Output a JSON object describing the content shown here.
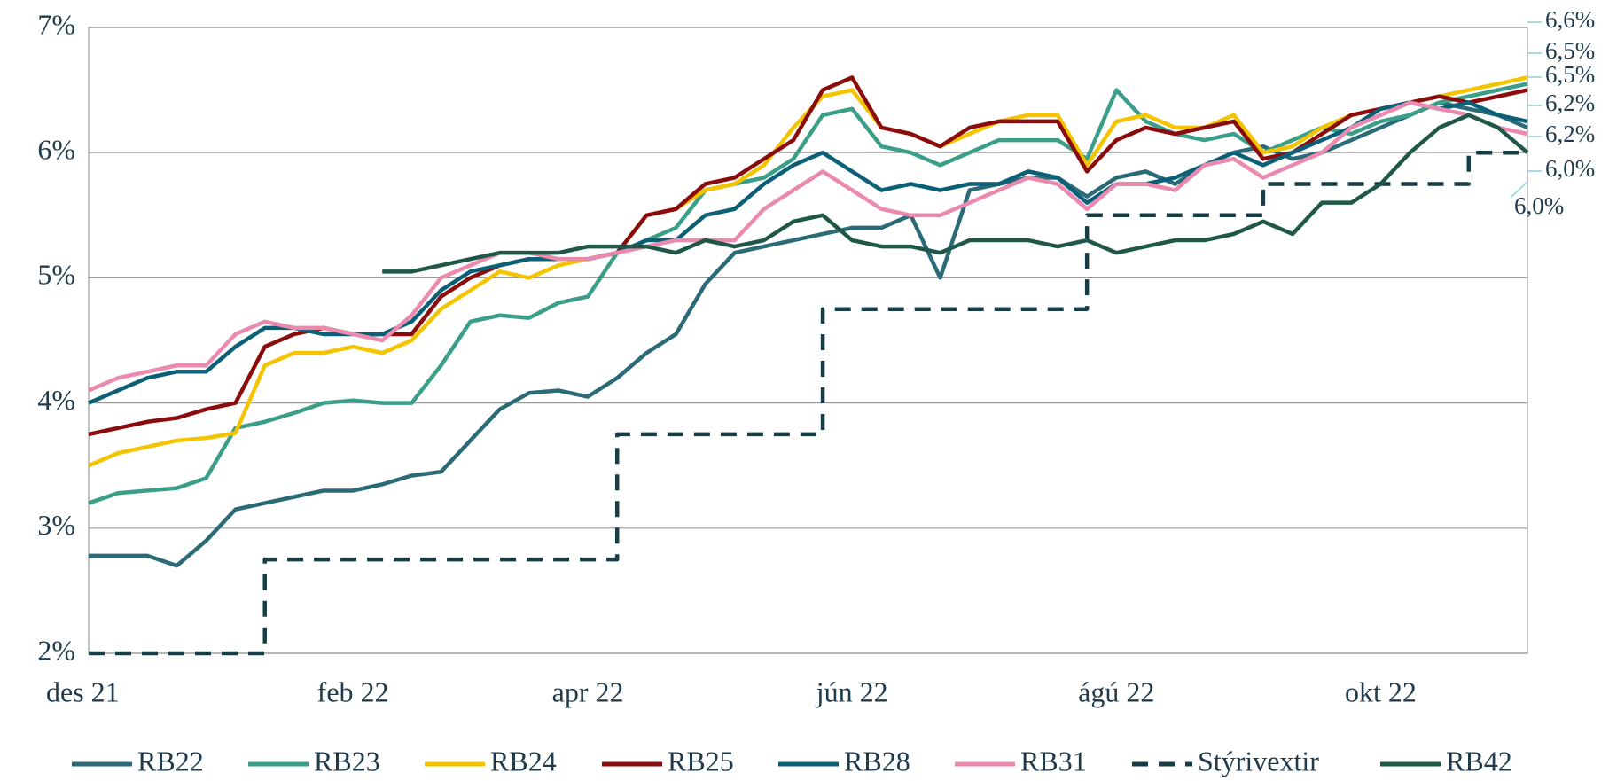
{
  "chart_data": {
    "type": "line",
    "categories": [
      "des 21",
      null,
      null,
      null,
      null,
      null,
      null,
      null,
      null,
      "feb 22",
      null,
      null,
      null,
      null,
      null,
      null,
      null,
      "apr 22",
      null,
      null,
      null,
      null,
      null,
      null,
      null,
      null,
      "jún 22",
      null,
      null,
      null,
      null,
      null,
      null,
      null,
      null,
      "ágú 22",
      null,
      null,
      null,
      null,
      null,
      null,
      null,
      null,
      "okt 22",
      null,
      null,
      null,
      null,
      null
    ],
    "ylim": [
      2,
      7
    ],
    "yticks": [
      {
        "value": 2,
        "label": "2%"
      },
      {
        "value": 3,
        "label": "3%"
      },
      {
        "value": 4,
        "label": "4%"
      },
      {
        "value": 5,
        "label": "5%"
      },
      {
        "value": 6,
        "label": "6%"
      },
      {
        "value": 7,
        "label": "7%"
      }
    ],
    "grid": true,
    "legend": "bottom",
    "end_labels": [
      "6,6%",
      "6,5%",
      "6,5%",
      "6,2%",
      "6,2%",
      "6,0%",
      "6,0%"
    ],
    "series": [
      {
        "name": "RB22",
        "color": "#2b6b78",
        "values": [
          2.78,
          2.78,
          2.78,
          2.7,
          2.9,
          3.15,
          3.2,
          3.25,
          3.3,
          3.3,
          3.35,
          3.42,
          3.45,
          3.7,
          3.95,
          4.08,
          4.1,
          4.05,
          4.2,
          4.4,
          4.55,
          4.95,
          5.2,
          5.25,
          5.3,
          5.35,
          5.4,
          5.4,
          5.5,
          5.0,
          5.7,
          5.75,
          5.8,
          5.8,
          5.65,
          5.8,
          5.85,
          5.75,
          5.9,
          6.0,
          6.05,
          5.95,
          6.0,
          6.1,
          6.2,
          6.3,
          6.4,
          6.35,
          6.3,
          6.2
        ]
      },
      {
        "name": "RB23",
        "color": "#3a9e88",
        "values": [
          3.2,
          3.28,
          3.3,
          3.32,
          3.4,
          3.8,
          3.85,
          3.92,
          4.0,
          4.02,
          4.0,
          4.0,
          4.3,
          4.65,
          4.7,
          4.68,
          4.8,
          4.85,
          5.2,
          5.3,
          5.4,
          5.7,
          5.75,
          5.8,
          5.95,
          6.3,
          6.35,
          6.05,
          6.0,
          5.9,
          6.0,
          6.1,
          6.1,
          6.1,
          5.95,
          6.5,
          6.25,
          6.15,
          6.1,
          6.15,
          6.0,
          6.1,
          6.2,
          6.15,
          6.25,
          6.3,
          6.4,
          6.45,
          6.5,
          6.55
        ]
      },
      {
        "name": "RB24",
        "color": "#f5c400",
        "values": [
          3.5,
          3.6,
          3.65,
          3.7,
          3.72,
          3.76,
          4.3,
          4.4,
          4.4,
          4.45,
          4.4,
          4.5,
          4.75,
          4.9,
          5.05,
          5.0,
          5.1,
          5.15,
          5.2,
          5.5,
          5.55,
          5.7,
          5.75,
          5.9,
          6.2,
          6.45,
          6.5,
          6.2,
          6.15,
          6.05,
          6.15,
          6.25,
          6.3,
          6.3,
          5.9,
          6.25,
          6.3,
          6.2,
          6.2,
          6.3,
          6.0,
          6.05,
          6.2,
          6.3,
          6.35,
          6.4,
          6.45,
          6.5,
          6.55,
          6.6
        ]
      },
      {
        "name": "RB25",
        "color": "#8b0c0c",
        "values": [
          3.75,
          3.8,
          3.85,
          3.88,
          3.95,
          4.0,
          4.45,
          4.55,
          4.6,
          4.55,
          4.55,
          4.55,
          4.85,
          5.0,
          5.1,
          5.15,
          5.15,
          5.15,
          5.2,
          5.5,
          5.55,
          5.75,
          5.8,
          5.95,
          6.1,
          6.5,
          6.6,
          6.2,
          6.15,
          6.05,
          6.2,
          6.25,
          6.25,
          6.25,
          5.85,
          6.1,
          6.2,
          6.15,
          6.2,
          6.25,
          5.95,
          6.0,
          6.15,
          6.3,
          6.35,
          6.4,
          6.45,
          6.4,
          6.45,
          6.5
        ]
      },
      {
        "name": "RB28",
        "color": "#0b6078",
        "values": [
          4.0,
          4.1,
          4.2,
          4.25,
          4.25,
          4.45,
          4.6,
          4.6,
          4.55,
          4.55,
          4.55,
          4.65,
          4.9,
          5.05,
          5.1,
          5.15,
          5.15,
          5.15,
          5.2,
          5.3,
          5.3,
          5.5,
          5.55,
          5.75,
          5.9,
          6.0,
          5.85,
          5.7,
          5.75,
          5.7,
          5.75,
          5.75,
          5.85,
          5.8,
          5.6,
          5.75,
          5.75,
          5.8,
          5.9,
          6.0,
          5.9,
          6.0,
          6.1,
          6.2,
          6.35,
          6.4,
          6.35,
          6.4,
          6.3,
          6.25
        ]
      },
      {
        "name": "RB31",
        "color": "#e98aae",
        "values": [
          4.1,
          4.2,
          4.25,
          4.3,
          4.3,
          4.55,
          4.65,
          4.6,
          4.6,
          4.55,
          4.5,
          4.7,
          5.0,
          5.1,
          5.2,
          5.2,
          5.15,
          5.15,
          5.2,
          5.25,
          5.3,
          5.3,
          5.3,
          5.55,
          5.7,
          5.85,
          5.7,
          5.55,
          5.5,
          5.5,
          5.6,
          5.7,
          5.8,
          5.75,
          5.55,
          5.75,
          5.75,
          5.7,
          5.9,
          5.95,
          5.8,
          5.9,
          6.0,
          6.2,
          6.3,
          6.4,
          6.35,
          6.3,
          6.2,
          6.15
        ]
      },
      {
        "name": "Stýrivextir",
        "color": "#173e46",
        "dashed": true,
        "step": true,
        "values": [
          2.0,
          2.0,
          2.0,
          2.0,
          2.0,
          2.0,
          2.75,
          2.75,
          2.75,
          2.75,
          2.75,
          2.75,
          2.75,
          2.75,
          2.75,
          2.75,
          2.75,
          2.75,
          3.75,
          3.75,
          3.75,
          3.75,
          3.75,
          3.75,
          3.75,
          4.75,
          4.75,
          4.75,
          4.75,
          4.75,
          4.75,
          4.75,
          4.75,
          4.75,
          5.5,
          5.5,
          5.5,
          5.5,
          5.5,
          5.5,
          5.75,
          5.75,
          5.75,
          5.75,
          5.75,
          5.75,
          5.75,
          6.0,
          6.0,
          6.0
        ]
      },
      {
        "name": "RB42",
        "color": "#1f5848",
        "values": [
          null,
          null,
          null,
          null,
          null,
          null,
          null,
          null,
          null,
          null,
          5.05,
          5.05,
          5.1,
          5.15,
          5.2,
          5.2,
          5.2,
          5.25,
          5.25,
          5.25,
          5.2,
          5.3,
          5.25,
          5.3,
          5.45,
          5.5,
          5.3,
          5.25,
          5.25,
          5.2,
          5.3,
          5.3,
          5.3,
          5.25,
          5.3,
          5.2,
          5.25,
          5.3,
          5.3,
          5.35,
          5.45,
          5.35,
          5.6,
          5.6,
          5.75,
          6.0,
          6.2,
          6.3,
          6.2,
          6.0
        ]
      }
    ]
  }
}
